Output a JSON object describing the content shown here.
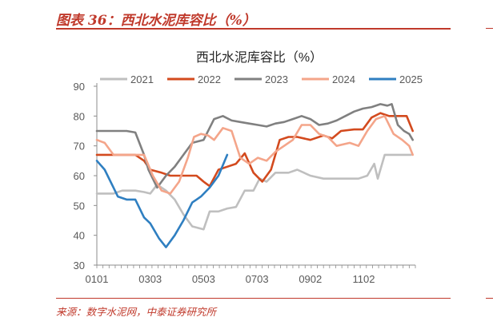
{
  "figure": {
    "title": "图表 36：西北水泥库容比（%）",
    "source": "来源：数字水泥网，中泰证券研究所"
  },
  "colors": {
    "accent": "#c0392b",
    "axis": "#8c8c8c",
    "text": "#595959"
  },
  "chart_data": {
    "type": "line",
    "title": "西北水泥库容比（%）",
    "xlabel": "",
    "ylabel": "",
    "xlim": [
      1,
      365
    ],
    "ylim": [
      30,
      90
    ],
    "yticks": [
      30,
      40,
      50,
      60,
      70,
      80,
      90
    ],
    "xtick_labels": [
      {
        "label": "0101",
        "day": 1
      },
      {
        "label": "0303",
        "day": 62
      },
      {
        "label": "0503",
        "day": 123
      },
      {
        "label": "0703",
        "day": 184
      },
      {
        "label": "0902",
        "day": 245
      },
      {
        "label": "1102",
        "day": 306
      }
    ],
    "grid": false,
    "legend": "top",
    "series": [
      {
        "name": "2021",
        "color": "#bfbfbf",
        "x": [
          1,
          20,
          30,
          45,
          55,
          62,
          70,
          80,
          90,
          100,
          110,
          123,
          130,
          140,
          150,
          160,
          170,
          180,
          187,
          195,
          205,
          220,
          230,
          245,
          260,
          275,
          290,
          300,
          310,
          318,
          322,
          330,
          340,
          350,
          360
        ],
        "y": [
          54,
          54,
          55,
          55,
          54.5,
          54,
          57,
          55,
          52,
          47,
          43,
          42,
          48,
          48,
          49,
          49.5,
          55,
          55,
          59,
          58,
          61,
          61,
          62,
          60,
          59,
          59,
          59,
          59,
          60,
          64,
          59,
          67,
          67,
          67,
          67
        ]
      },
      {
        "name": "2022",
        "color": "#d34a1e",
        "x": [
          1,
          15,
          30,
          45,
          55,
          62,
          75,
          85,
          95,
          105,
          115,
          123,
          130,
          140,
          150,
          160,
          170,
          180,
          190,
          200,
          210,
          220,
          230,
          245,
          260,
          270,
          280,
          295,
          305,
          315,
          325,
          335,
          345,
          355,
          362
        ],
        "y": [
          67,
          67,
          67,
          67,
          65,
          62,
          61,
          60,
          60,
          60,
          60,
          58,
          56.5,
          62,
          63,
          64,
          67.5,
          61,
          58,
          62,
          72,
          73,
          73,
          72,
          73.5,
          72.5,
          75,
          75.5,
          75.5,
          79.5,
          81,
          80,
          80,
          80,
          75
        ]
      },
      {
        "name": "2023",
        "color": "#808080",
        "x": [
          1,
          20,
          35,
          45,
          55,
          60,
          70,
          80,
          90,
          100,
          110,
          123,
          135,
          145,
          155,
          165,
          175,
          185,
          195,
          205,
          215,
          225,
          235,
          245,
          255,
          265,
          275,
          285,
          295,
          305,
          315,
          325,
          333,
          338,
          345,
          352,
          358,
          362
        ],
        "y": [
          75,
          75,
          75,
          74.5,
          67,
          62,
          56,
          60,
          63,
          67,
          71,
          72,
          79,
          80,
          78.5,
          78,
          77.5,
          77,
          76.5,
          77.5,
          78,
          79,
          80,
          79,
          77,
          77.5,
          78.5,
          80,
          81.5,
          82.5,
          83,
          84,
          83.5,
          84,
          77,
          75,
          74,
          72
        ]
      },
      {
        "name": "2024",
        "color": "#f4a58a",
        "x": [
          1,
          10,
          20,
          30,
          45,
          55,
          65,
          75,
          85,
          95,
          105,
          112,
          120,
          128,
          135,
          145,
          155,
          165,
          175,
          185,
          195,
          205,
          215,
          225,
          235,
          245,
          255,
          265,
          275,
          290,
          300,
          310,
          320,
          330,
          340,
          350,
          358,
          362
        ],
        "y": [
          72,
          71,
          67,
          67,
          67,
          67,
          60,
          55,
          54,
          58,
          66,
          73,
          74,
          73.5,
          72,
          76,
          75,
          66,
          64,
          66,
          65,
          68,
          70,
          72,
          77,
          77,
          74,
          73,
          70,
          71,
          70,
          75,
          79,
          80,
          74,
          72,
          70,
          67
        ]
      },
      {
        "name": "2025",
        "color": "#2f7fc1",
        "x": [
          1,
          10,
          20,
          25,
          35,
          45,
          55,
          62,
          72,
          80,
          90,
          100,
          110,
          115,
          120,
          130,
          140,
          150
        ],
        "y": [
          65,
          62,
          56,
          53,
          52,
          52,
          46,
          44,
          39,
          36,
          40,
          45,
          51,
          52,
          53,
          56,
          60,
          67
        ]
      }
    ]
  }
}
